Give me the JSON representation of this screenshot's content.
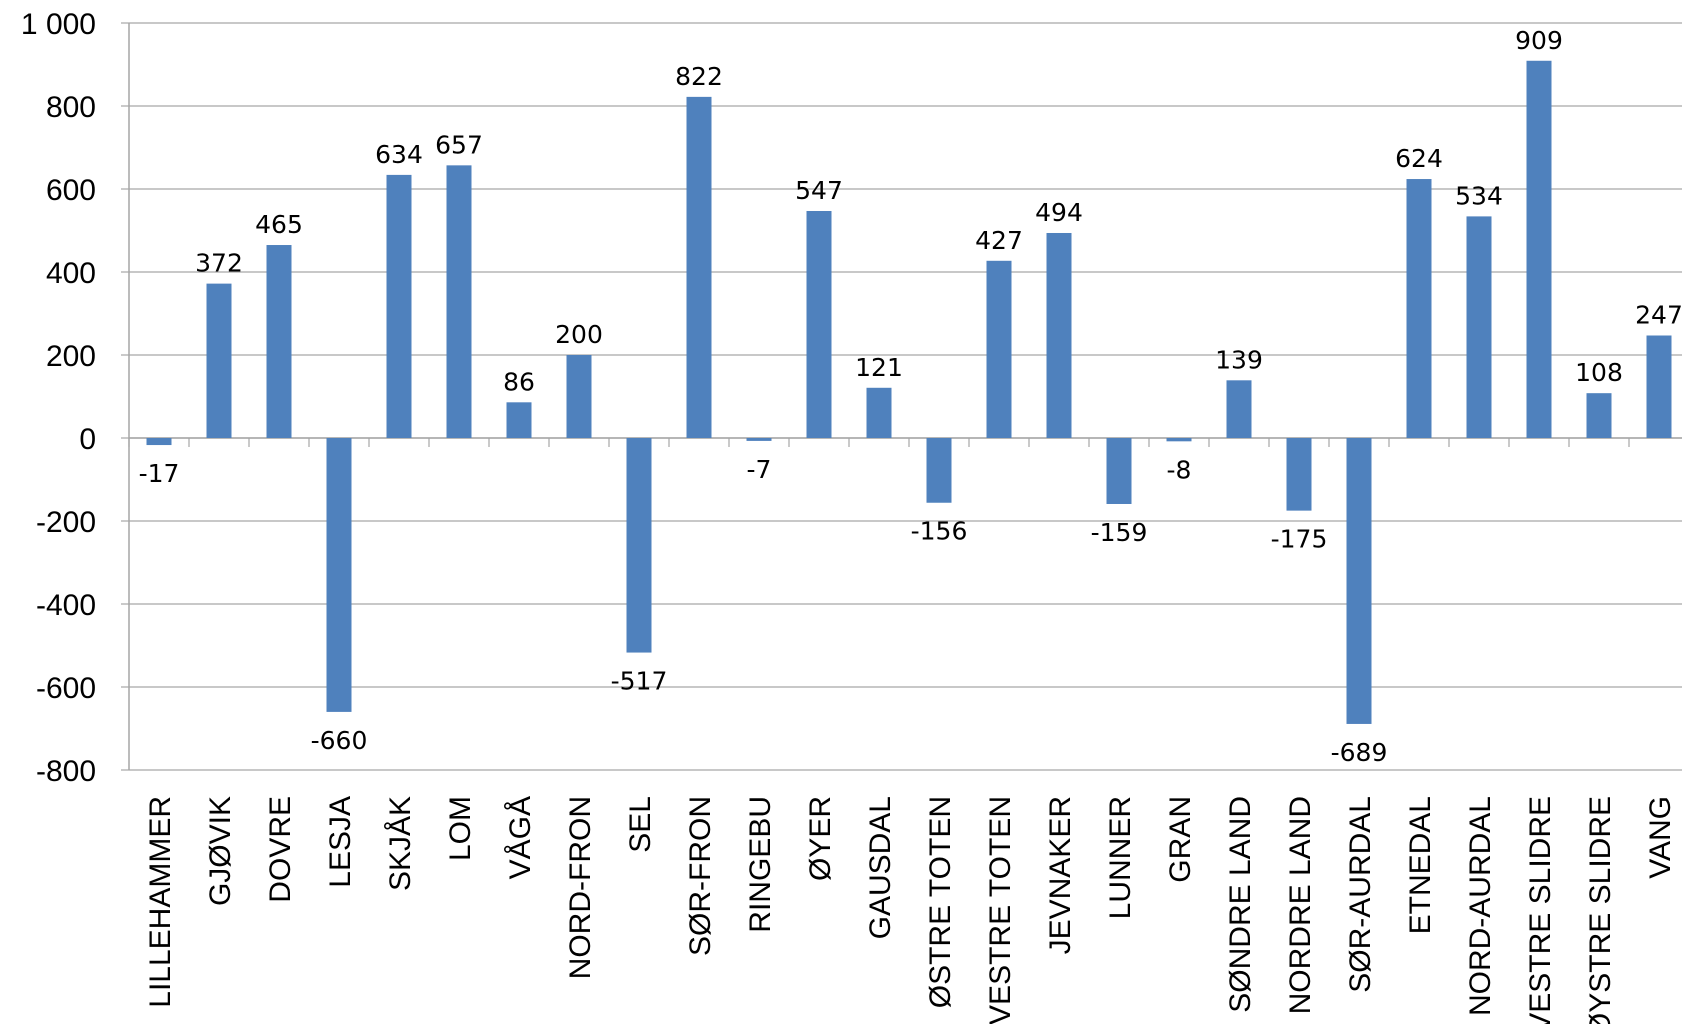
{
  "chart_data": {
    "type": "bar",
    "title": "",
    "xlabel": "",
    "ylabel": "",
    "ylim": [
      -800,
      1000
    ],
    "yticks": [
      1000,
      800,
      600,
      400,
      200,
      0,
      -200,
      -400,
      -600,
      -800
    ],
    "ytick_labels": [
      "1 000",
      "800",
      "600",
      "400",
      "200",
      "0",
      "-200",
      "-400",
      "-600",
      "-800"
    ],
    "grid": true,
    "legend": "none",
    "bar_color": "#4f81bd",
    "categories": [
      "LILLEHAMMER",
      "GJØVIK",
      "DOVRE",
      "LESJA",
      "SKJÅK",
      "LOM",
      "VÅGÅ",
      "NORD-FRON",
      "SEL",
      "SØR-FRON",
      "RINGEBU",
      "ØYER",
      "GAUSDAL",
      "ØSTRE TOTEN",
      "VESTRE TOTEN",
      "JEVNAKER",
      "LUNNER",
      "GRAN",
      "SØNDRE LAND",
      "NORDRE LAND",
      "SØR-AURDAL",
      "ETNEDAL",
      "NORD-AURDAL",
      "VESTRE SLIDRE",
      "ØYSTRE SLIDRE",
      "VANG"
    ],
    "values": [
      -17,
      372,
      465,
      -660,
      634,
      657,
      86,
      200,
      -517,
      822,
      -7,
      547,
      121,
      -156,
      427,
      494,
      -159,
      -8,
      139,
      -175,
      -689,
      624,
      534,
      909,
      108,
      247
    ]
  }
}
